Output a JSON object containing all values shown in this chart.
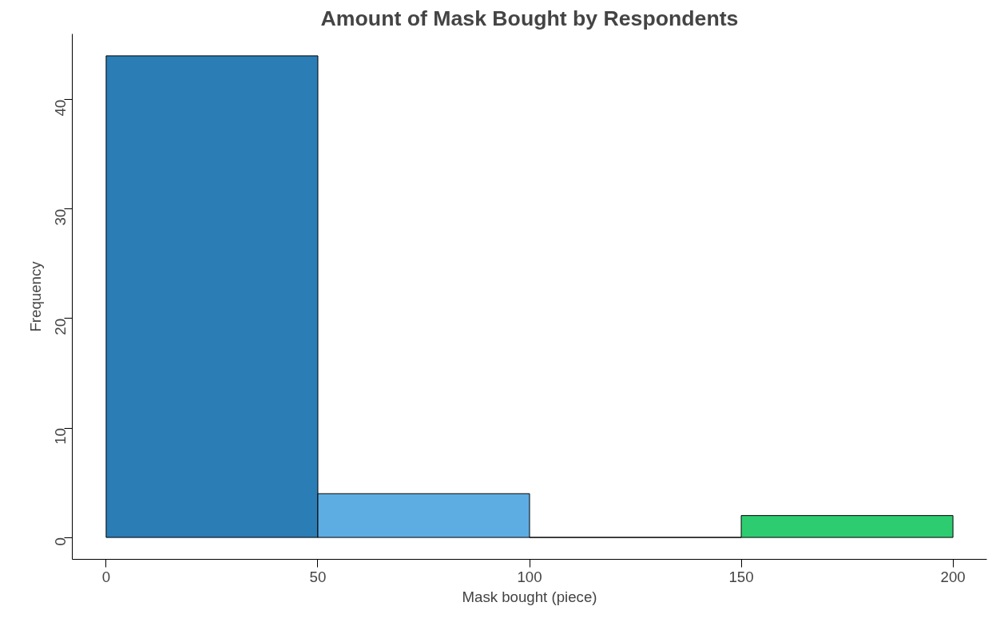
{
  "chart_data": {
    "type": "histogram",
    "title": "Amount of Mask Bought by Respondents",
    "xlabel": "Mask bought (piece)",
    "ylabel": "Frequency",
    "bins": [
      0,
      50,
      100,
      150,
      200
    ],
    "values": [
      44,
      4,
      0,
      2
    ],
    "colors": [
      "#2a7db5",
      "#5dade2",
      "#000000",
      "#2ecc71"
    ],
    "xlim": [
      -8,
      208
    ],
    "ylim": [
      -2,
      46
    ],
    "xticks": [
      0,
      50,
      100,
      150,
      200
    ],
    "yticks": [
      0,
      10,
      20,
      30,
      40
    ],
    "grid": false
  }
}
